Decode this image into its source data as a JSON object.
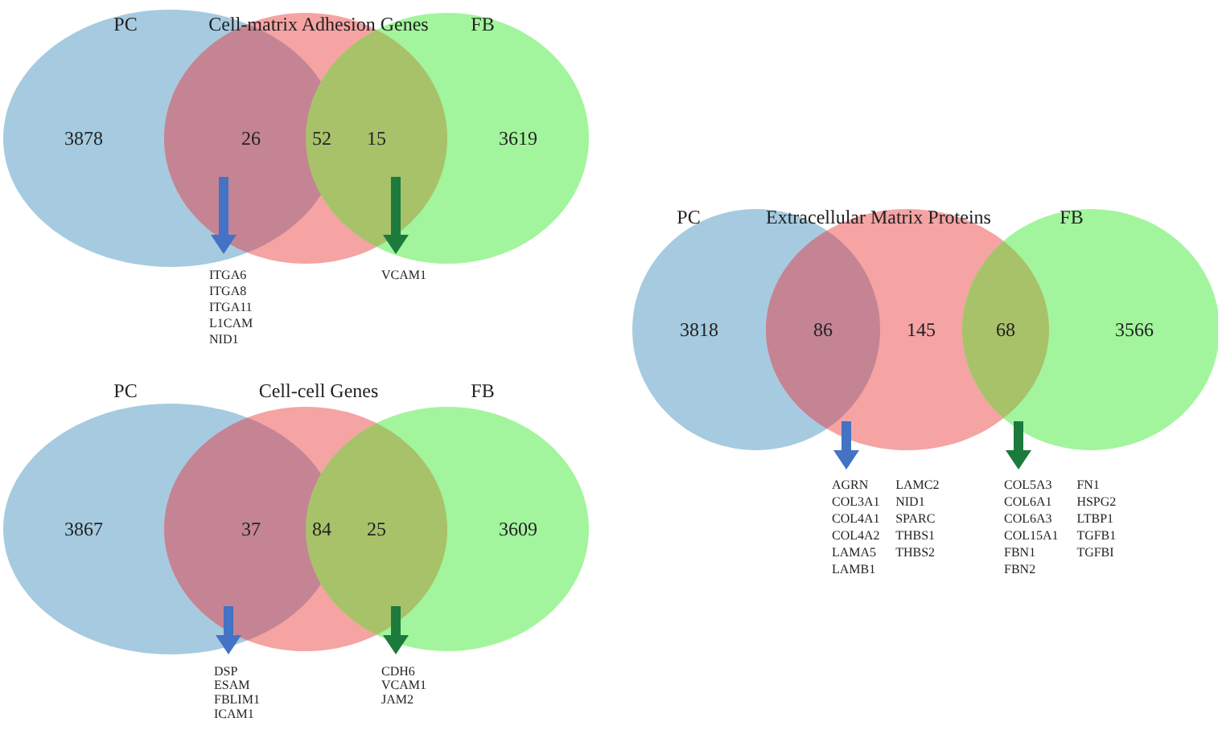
{
  "chart_data": [
    {
      "type": "other",
      "title": "Cell-matrix Adhesion Genes",
      "categories": [
        null,
        null,
        null,
        null,
        null
      ],
      "values": [
        3878,
        26,
        52,
        15,
        3619
      ],
      "data_labels": true,
      "colors": [
        "#a6cbe0",
        "#c48494",
        "#f5a3a3",
        "#a8c26a",
        "#a2f59c"
      ],
      "annotations": [
        "PC",
        "FB",
        "ITGA6\nITGA8\nITGA11\nL1CAM\nNID1",
        "VCAM1"
      ]
    },
    {
      "type": "other",
      "title": "Cell-cell Genes",
      "categories": [
        null,
        null,
        null,
        null,
        null
      ],
      "values": [
        3867,
        37,
        84,
        25,
        3609
      ],
      "data_labels": true,
      "colors": [
        "#a6cbe0",
        "#c48494",
        "#f5a3a3",
        "#a8c26a",
        "#a2f59c"
      ],
      "annotations": [
        "PC",
        "FB",
        "DSP\nESAM\nFBLIM1\nICAM1",
        "CDH6\nVCAM1\nJAM2"
      ]
    },
    {
      "type": "other",
      "title": "Extracellular Matrix Proteins",
      "categories": [
        null,
        null,
        null,
        null,
        null
      ],
      "values": [
        3818,
        86,
        145,
        68,
        3566
      ],
      "data_labels": true,
      "colors": [
        "#a6cbe0",
        "#c48494",
        "#f5a3a3",
        "#a8c26a",
        "#a2f59c"
      ],
      "annotations": [
        "PC",
        "FB",
        "AGRN\nCOL3A1\nCOL4A1\nCOL4A2\nLAMA5\nLAMB1",
        "LAMC2\nNID1\nSPARC\nTHBS1\nTHBS2",
        "COL5A3\nCOL6A1\nCOL6A3\nCOL15A1\nFBN1\nFBN2",
        "FN1\nHSPG2\nLTBP1\nTGFB1\nTGFBI"
      ]
    }
  ]
}
